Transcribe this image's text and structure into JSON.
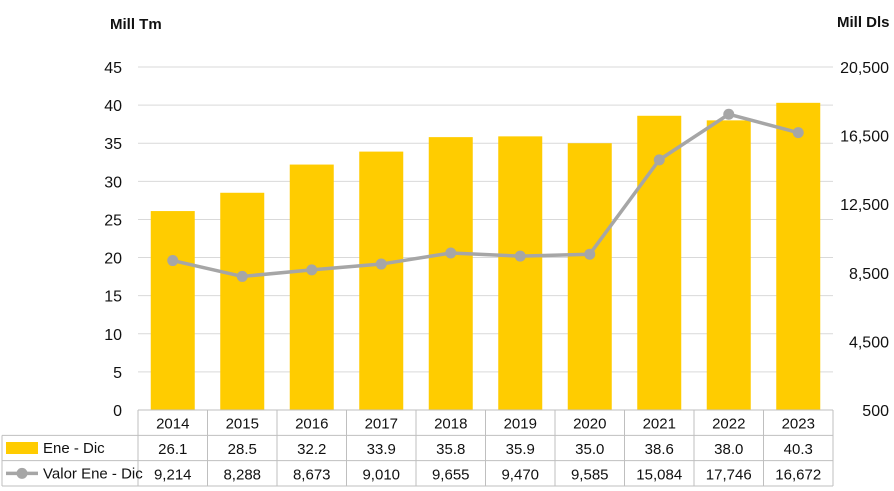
{
  "chart_data": {
    "type": "bar+line",
    "left_unit": "Mill Tm",
    "right_unit": "Mill Dls",
    "categories": [
      "2014",
      "2015",
      "2016",
      "2017",
      "2018",
      "2019",
      "2020",
      "2021",
      "2022",
      "2023"
    ],
    "series": [
      {
        "name": "Ene - Dic",
        "type": "bar",
        "axis": "left",
        "color": "#FFCC00",
        "values": [
          26.1,
          28.5,
          32.2,
          33.9,
          35.8,
          35.9,
          35.0,
          38.6,
          38.0,
          40.3
        ],
        "labels": [
          "26.1",
          "28.5",
          "32.2",
          "33.9",
          "35.8",
          "35.9",
          "35.0",
          "38.6",
          "38.0",
          "40.3"
        ]
      },
      {
        "name": "Valor Ene - Dic",
        "type": "line",
        "axis": "right",
        "color": "#A6A6A6",
        "values": [
          9214,
          8288,
          8673,
          9010,
          9655,
          9470,
          9585,
          15084,
          17746,
          16672
        ],
        "labels": [
          "9,214",
          "8,288",
          "8,673",
          "9,010",
          "9,655",
          "9,470",
          "9,585",
          "15,084",
          "17,746",
          "16,672"
        ]
      }
    ],
    "y_left": {
      "min": 0,
      "max": 45,
      "ticks": [
        "0",
        "5",
        "10",
        "15",
        "20",
        "25",
        "30",
        "35",
        "40",
        "45"
      ]
    },
    "y_right": {
      "min": 500,
      "max": 20500,
      "ticks": [
        "500",
        "4,500",
        "8,500",
        "12,500",
        "16,500",
        "20,500"
      ]
    },
    "grid": true,
    "legend": "data-table-below"
  }
}
